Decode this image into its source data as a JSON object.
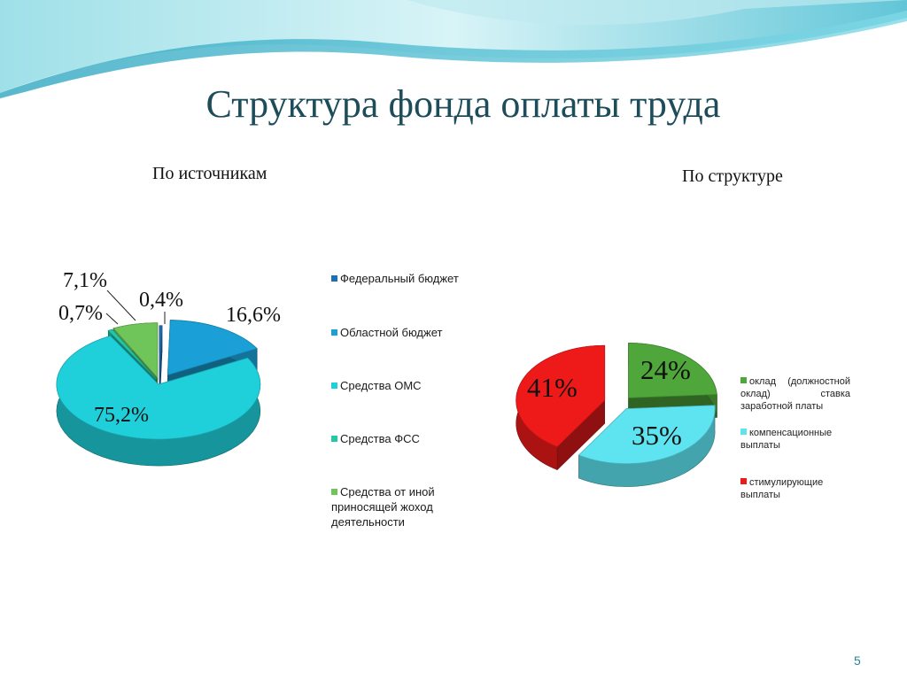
{
  "title": "Структура фонда оплаты труда",
  "page_number": "5",
  "colors": {
    "title": "#1d4c5a",
    "wave_light": "#cdeef2",
    "wave_mid": "#8fd3df",
    "wave_dark": "#3fb0c6"
  },
  "chart_data": [
    {
      "type": "pie",
      "subtitle": "По источникам",
      "categories": [
        "Федеральный бюджет",
        "Областной бюджет",
        "Средства ОМС",
        "Средства ФСС",
        "Средства от иной приносящей жоход деятельности"
      ],
      "values": [
        0.4,
        16.6,
        75.2,
        0.7,
        7.1
      ],
      "labels": [
        "0,4%",
        "16,6%",
        "75,2%",
        "0,7%",
        "7,1%"
      ],
      "colors": [
        "#1f6fb2",
        "#1aa0d6",
        "#1fcfd9",
        "#22c8a8",
        "#6fc45a"
      ],
      "legend": "right"
    },
    {
      "type": "pie",
      "subtitle": "По структуре",
      "categories": [
        "оклад (должностной оклад) ставка заработной платы",
        "компенсационные выплаты",
        "стимулирующие выплаты"
      ],
      "values": [
        24,
        35,
        41
      ],
      "labels": [
        "24%",
        "35%",
        "41%"
      ],
      "colors": [
        "#4fa63a",
        "#5ee4f0",
        "#ee1a1a"
      ],
      "legend": "right"
    }
  ]
}
